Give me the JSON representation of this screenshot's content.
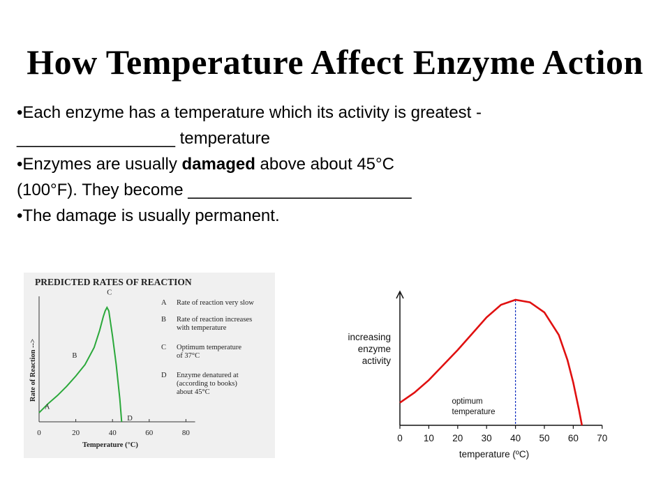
{
  "slide": {
    "title": "How Temperature Affect Enzyme Action",
    "bullets": [
      {
        "text": "•Each enzyme has a temperature which its activity is greatest -"
      },
      {
        "text": "_________________ temperature"
      },
      {
        "pre": "•Enzymes are usually ",
        "bold": "damaged",
        "post": " above about 45°C"
      },
      {
        "text": "(100°F). They become ________________________"
      },
      {
        "text": "•The damage is usually permanent."
      }
    ]
  },
  "chart_data": [
    {
      "type": "line",
      "title": "PREDICTED RATES OF REACTION",
      "xlabel": "Temperature (°C)",
      "ylabel": "Rate of Reaction -->",
      "x_ticks": [
        "0",
        "20",
        "40",
        "60",
        "80"
      ],
      "xlim": [
        0,
        85
      ],
      "ylim": [
        0,
        1
      ],
      "series": [
        {
          "color": "#2aa83a",
          "points": [
            [
              0,
              0.08
            ],
            [
              5,
              0.16
            ],
            [
              10,
              0.23
            ],
            [
              15,
              0.31
            ],
            [
              20,
              0.4
            ],
            [
              25,
              0.5
            ],
            [
              30,
              0.65
            ],
            [
              33,
              0.8
            ],
            [
              35,
              0.92
            ],
            [
              36,
              0.97
            ],
            [
              37,
              1.0
            ],
            [
              38,
              0.97
            ],
            [
              40,
              0.75
            ],
            [
              42,
              0.5
            ],
            [
              44,
              0.2
            ],
            [
              45,
              0.0
            ]
          ]
        }
      ],
      "point_labels": [
        {
          "label": "A",
          "x": 3,
          "y": 0.1
        },
        {
          "label": "B",
          "x": 18,
          "y": 0.55
        },
        {
          "label": "C",
          "x": 37,
          "y": 1.1
        },
        {
          "label": "D",
          "x": 48,
          "y": 0.0
        }
      ],
      "annotations": [
        {
          "key": "A",
          "lines": [
            "Rate of reaction very slow"
          ]
        },
        {
          "key": "B",
          "lines": [
            "Rate of reaction increases",
            "with temperature"
          ]
        },
        {
          "key": "C",
          "lines": [
            "Optimum temperature",
            "of 37°C"
          ]
        },
        {
          "key": "D",
          "lines": [
            "Enzyme denatured at",
            "(according to books)",
            "about 45°C"
          ]
        }
      ],
      "background": "#f0f0f0"
    },
    {
      "type": "line",
      "title": "",
      "xlabel": "temperature (ºC)",
      "ylabel": "increasing enzyme activity",
      "ylabel_lines": [
        "increasing",
        "enzyme",
        "activity"
      ],
      "x_ticks": [
        "0",
        "10",
        "20",
        "30",
        "40",
        "50",
        "60",
        "70"
      ],
      "xlim": [
        0,
        70
      ],
      "ylim": [
        0,
        1
      ],
      "series": [
        {
          "color": "#e01010",
          "points": [
            [
              0,
              0.18
            ],
            [
              5,
              0.26
            ],
            [
              10,
              0.36
            ],
            [
              15,
              0.48
            ],
            [
              20,
              0.6
            ],
            [
              25,
              0.73
            ],
            [
              30,
              0.86
            ],
            [
              35,
              0.96
            ],
            [
              40,
              1.0
            ],
            [
              45,
              0.98
            ],
            [
              50,
              0.9
            ],
            [
              55,
              0.72
            ],
            [
              58,
              0.52
            ],
            [
              60,
              0.34
            ],
            [
              62,
              0.12
            ],
            [
              63,
              0.0
            ]
          ]
        }
      ],
      "marker_line": {
        "x": 40,
        "color": "#1030c0"
      },
      "marker_label": [
        "optimum",
        "temperature"
      ]
    }
  ]
}
